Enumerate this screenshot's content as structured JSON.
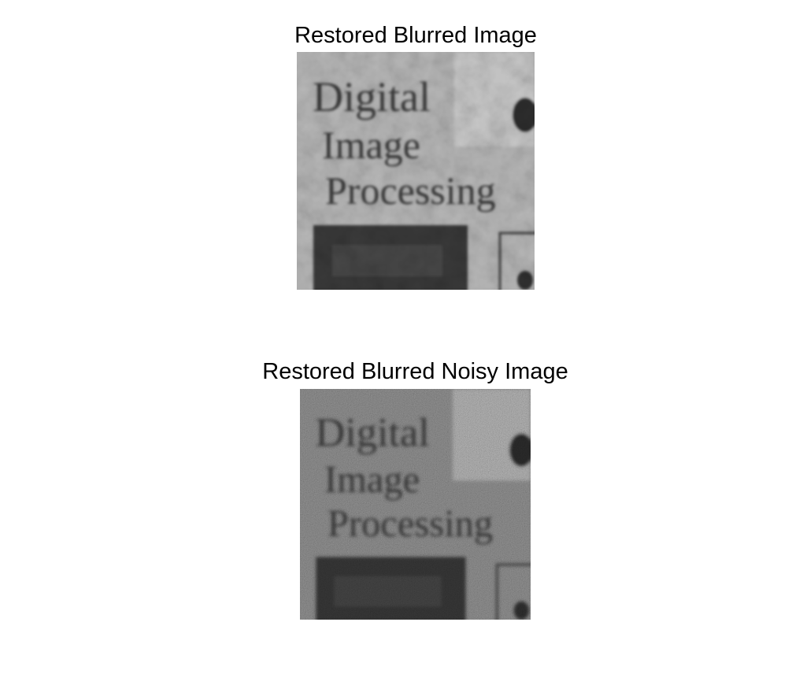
{
  "panels": [
    {
      "title": "Restored Blurred Image",
      "image_text": [
        "Digital",
        "Image",
        "Processing"
      ]
    },
    {
      "title": "Restored Blurred Noisy Image",
      "image_text": [
        "Digital",
        "Image",
        "Processing"
      ]
    }
  ]
}
